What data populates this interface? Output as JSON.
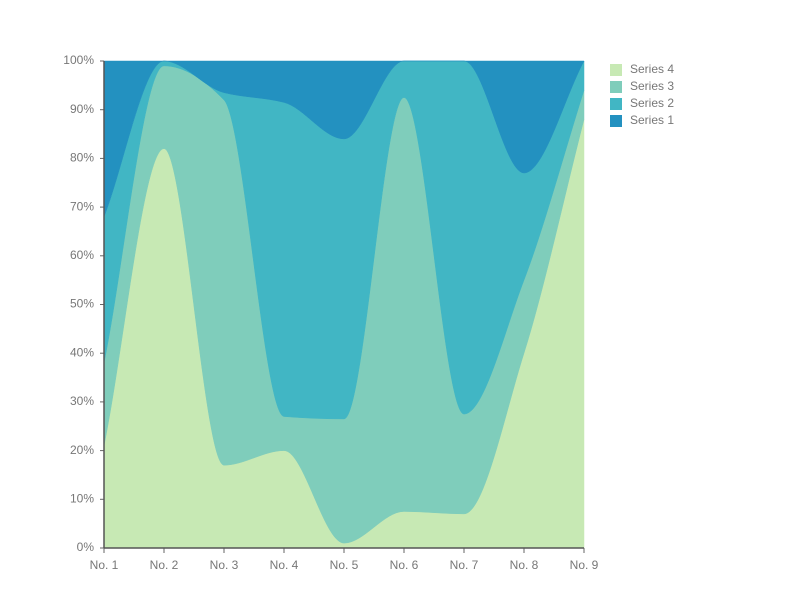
{
  "chart_data": {
    "type": "area",
    "stacked": true,
    "categories": [
      "No. 1",
      "No. 2",
      "No. 3",
      "No. 4",
      "No. 5",
      "No. 6",
      "No. 7",
      "No. 8",
      "No. 9"
    ],
    "series": [
      {
        "name": "Series 4",
        "color": "#c7e9b4",
        "values": [
          21,
          82,
          17,
          20,
          1,
          7.5,
          7,
          40,
          88
        ]
      },
      {
        "name": "Series 3",
        "color": "#7fcdbb",
        "values": [
          17,
          17,
          75,
          7,
          25.5,
          85,
          20.5,
          15,
          6
        ]
      },
      {
        "name": "Series 2",
        "color": "#41b6c4",
        "values": [
          30,
          1,
          1.5,
          64.5,
          57.5,
          7.5,
          72.5,
          22,
          6
        ]
      },
      {
        "name": "Series 1",
        "color": "#2391c0",
        "values": [
          32,
          0,
          6.5,
          8.5,
          16,
          0,
          0,
          23,
          0
        ]
      }
    ],
    "ylim": [
      0,
      100
    ],
    "yticks": [
      {
        "value": 0,
        "label": "0%"
      },
      {
        "value": 10,
        "label": "10%"
      },
      {
        "value": 20,
        "label": "20%"
      },
      {
        "value": 30,
        "label": "30%"
      },
      {
        "value": 40,
        "label": "40%"
      },
      {
        "value": 50,
        "label": "50%"
      },
      {
        "value": 60,
        "label": "60%"
      },
      {
        "value": 70,
        "label": "70%"
      },
      {
        "value": 80,
        "label": "80%"
      },
      {
        "value": 90,
        "label": "90%"
      },
      {
        "value": 100,
        "label": "100%"
      }
    ],
    "legend": "right"
  }
}
